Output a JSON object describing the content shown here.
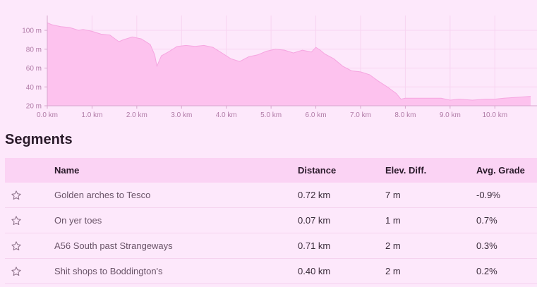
{
  "chart_data": {
    "type": "area",
    "x_unit": "km",
    "y_unit": "m",
    "x_ticks": [
      "0.0 km",
      "1.0 km",
      "2.0 km",
      "3.0 km",
      "4.0 km",
      "5.0 km",
      "6.0 km",
      "7.0 km",
      "8.0 km",
      "9.0 km",
      "10.0 km"
    ],
    "y_ticks": [
      "20 m",
      "40 m",
      "60 m",
      "80 m",
      "100 m"
    ],
    "xlim": [
      0,
      10.8
    ],
    "ylim": [
      20,
      112
    ],
    "grid": true,
    "colors": {
      "fill": "#fdc2ee",
      "stroke": "#f5a6e0"
    },
    "x": [
      0,
      0.1,
      0.3,
      0.5,
      0.7,
      0.8,
      1.0,
      1.2,
      1.4,
      1.6,
      1.7,
      1.9,
      2.1,
      2.2,
      2.3,
      2.4,
      2.45,
      2.55,
      2.7,
      2.9,
      3.1,
      3.3,
      3.5,
      3.7,
      3.9,
      4.1,
      4.3,
      4.5,
      4.7,
      4.9,
      5.1,
      5.3,
      5.5,
      5.7,
      5.9,
      6.0,
      6.1,
      6.2,
      6.4,
      6.6,
      6.8,
      7.0,
      7.2,
      7.4,
      7.6,
      7.8,
      7.9,
      8.0,
      8.2,
      8.5,
      8.8,
      9.0,
      9.2,
      9.5,
      9.8,
      10.0,
      10.2,
      10.5,
      10.8
    ],
    "y": [
      108,
      106,
      104,
      103,
      100,
      101,
      99,
      96,
      95,
      88,
      90,
      93,
      91,
      88,
      85,
      74,
      62,
      73,
      77,
      83,
      84,
      83,
      84,
      82,
      76,
      70,
      67,
      72,
      74,
      78,
      80,
      79,
      76,
      79,
      77,
      82,
      79,
      75,
      70,
      62,
      57,
      56,
      53,
      46,
      40,
      33,
      27,
      28,
      28,
      28,
      28,
      26,
      27,
      26,
      27,
      27,
      28,
      29,
      30
    ]
  },
  "segments": {
    "title": "Segments",
    "columns": {
      "name": "Name",
      "distance": "Distance",
      "elev_diff": "Elev. Diff.",
      "avg_grade": "Avg. Grade"
    },
    "rows": [
      {
        "name": "Golden arches to Tesco",
        "distance": "0.72 km",
        "elev_diff": "7 m",
        "avg_grade": "-0.9%",
        "icon": "star-outline-icon"
      },
      {
        "name": "On yer toes",
        "distance": "0.07 km",
        "elev_diff": "1 m",
        "avg_grade": "0.7%",
        "icon": "star-outline-icon"
      },
      {
        "name": "A56 South past Strangeways",
        "distance": "0.71 km",
        "elev_diff": "2 m",
        "avg_grade": "0.3%",
        "icon": "star-outline-icon"
      },
      {
        "name": "Shit shops to Boddington's",
        "distance": "0.40 km",
        "elev_diff": "2 m",
        "avg_grade": "0.2%",
        "icon": "star-outline-icon"
      }
    ]
  }
}
